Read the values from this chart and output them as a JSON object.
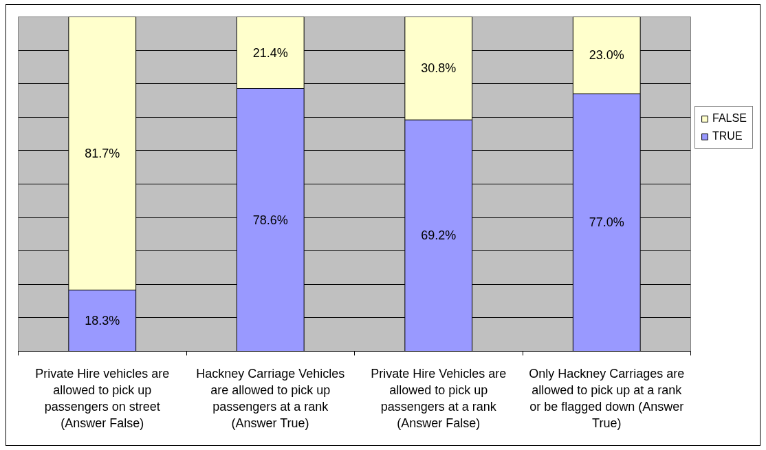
{
  "chart_data": {
    "type": "bar",
    "stacked": true,
    "categories": [
      "Private Hire vehicles are allowed to pick up passengers on street (Answer False)",
      "Hackney Carriage Vehicles are allowed to pick up passengers at a rank (Answer True)",
      "Private Hire Vehicles are allowed to pick up passengers at a rank (Answer False)",
      "Only Hackney Carriages are allowed to pick up at a rank or be flagged down (Answer True)"
    ],
    "series": [
      {
        "name": "TRUE",
        "color": "#9999ff",
        "values": [
          18.3,
          78.6,
          69.2,
          77.0
        ],
        "value_labels": [
          "18.3%",
          "78.6%",
          "69.2%",
          "77.0%"
        ]
      },
      {
        "name": "FALSE",
        "color": "#ffffcc",
        "values": [
          81.7,
          21.4,
          30.8,
          23.0
        ],
        "value_labels": [
          "81.7%",
          "21.4%",
          "30.8%",
          "23.0%"
        ]
      }
    ],
    "ylim": [
      0,
      100
    ],
    "yticks": [
      {
        "value": 0,
        "label": null
      },
      {
        "value": 10,
        "label": null
      },
      {
        "value": 20,
        "label": null
      },
      {
        "value": 30,
        "label": null
      },
      {
        "value": 40,
        "label": null
      },
      {
        "value": 50,
        "label": null
      },
      {
        "value": 60,
        "label": null
      },
      {
        "value": 70,
        "label": null
      },
      {
        "value": 80,
        "label": null
      },
      {
        "value": 90,
        "label": null
      },
      {
        "value": 100,
        "label": null
      }
    ],
    "grid": "y",
    "legend": "right",
    "tick_labels": "x"
  }
}
